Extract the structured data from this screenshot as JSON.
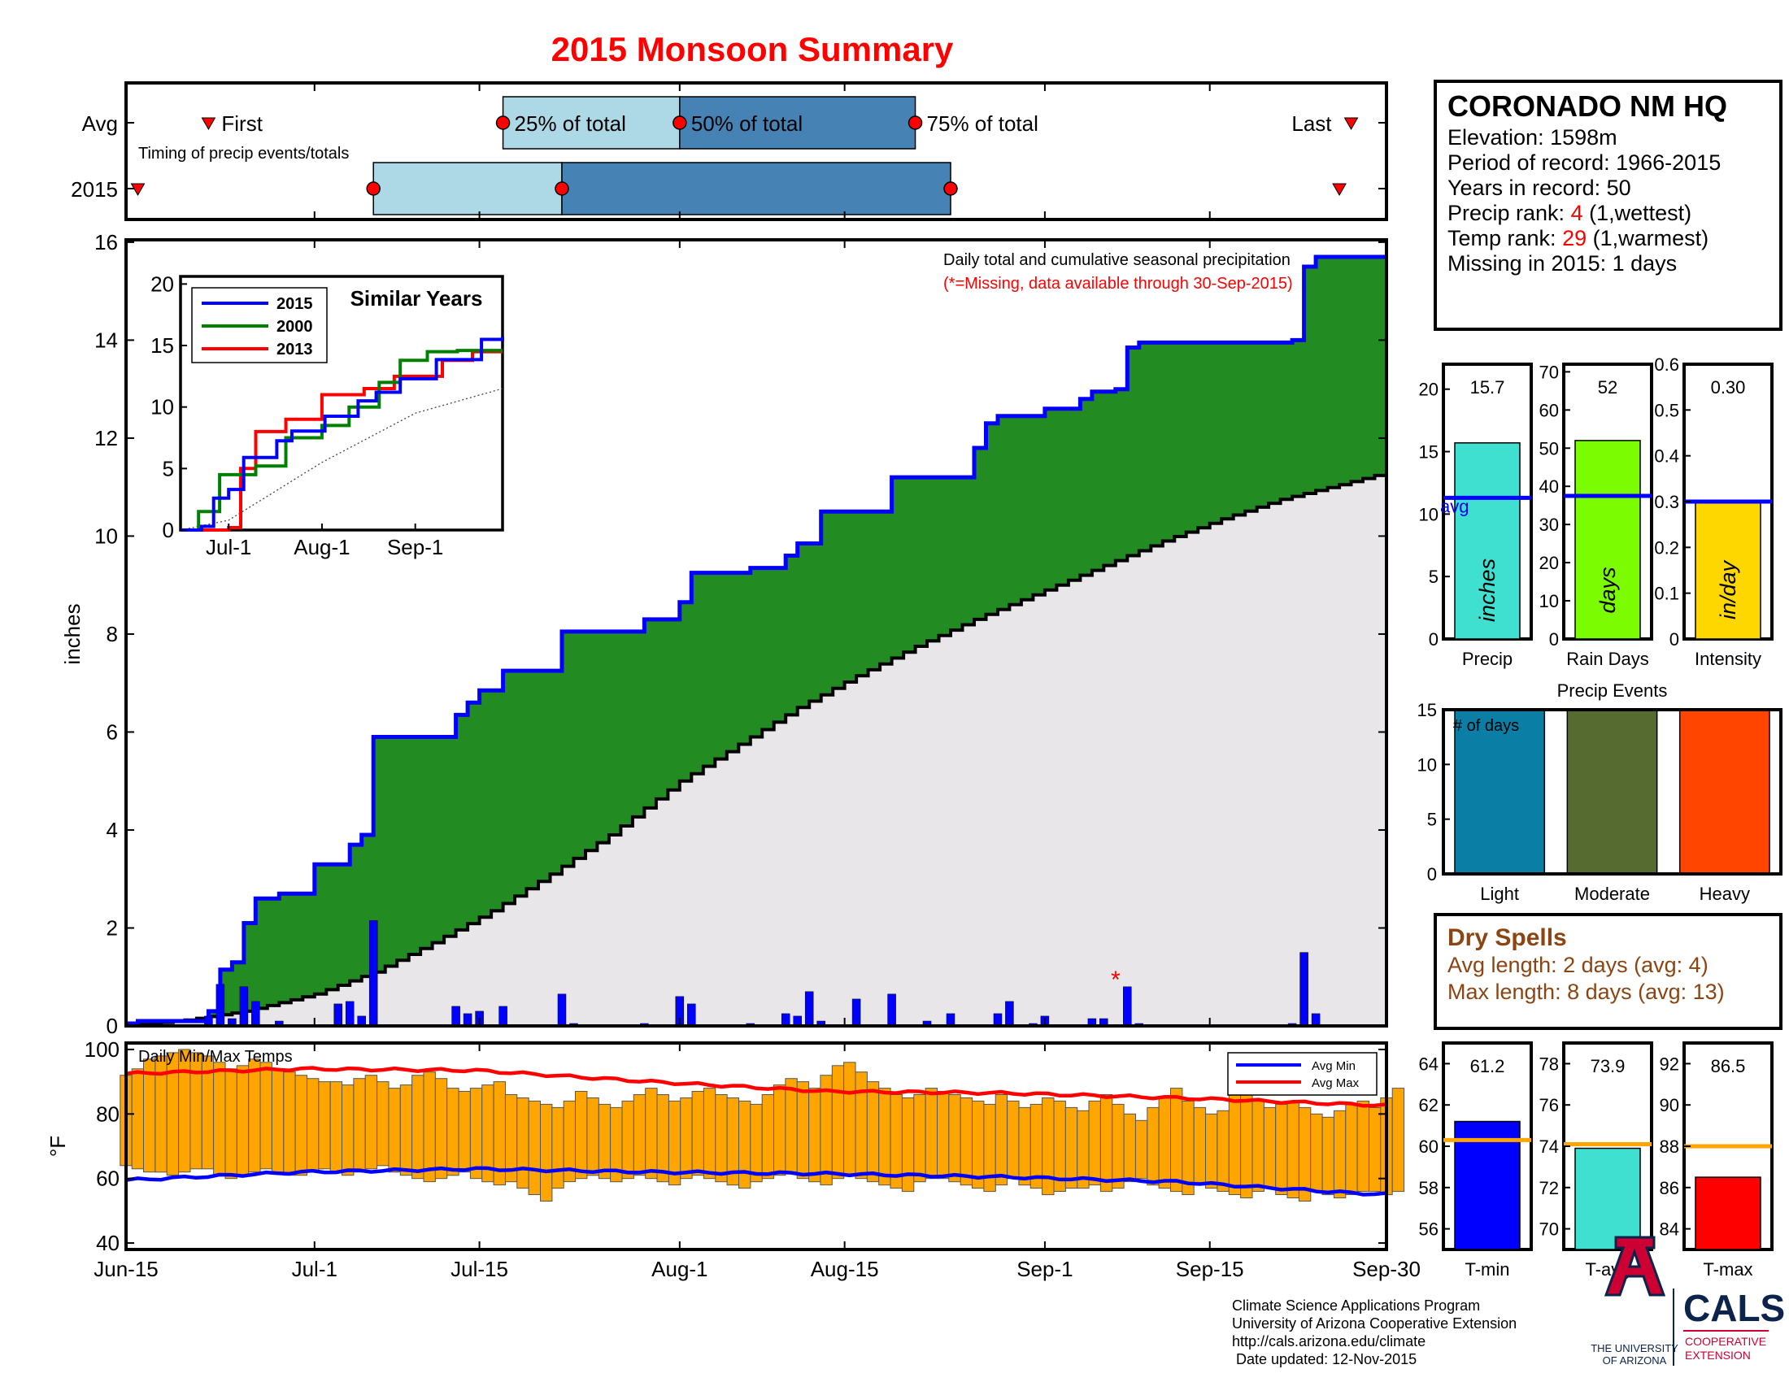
{
  "title": "2015 Monsoon Summary",
  "timing": {
    "row_labels": [
      "Avg",
      "2015"
    ],
    "subtitle": "Timing of precip events/totals",
    "first_label": "First",
    "last_label": "Last",
    "pct25_label": "25% of total",
    "pct50_label": "50% of total",
    "pct75_label": "75% of total",
    "avg": {
      "first": "Jun-22",
      "p25": "Jul-17",
      "p50": "Aug-1",
      "p75": "Aug-21",
      "last": "Sep-27"
    },
    "y2015": {
      "first": "Jun-16",
      "p25": "Jul-6",
      "p50": "Jul-22",
      "p75": "Aug-24",
      "last": "Sep-26"
    }
  },
  "station": {
    "name": "CORONADO NM HQ",
    "elevation_label": "Elevation: 1598m",
    "period_label": "Period of record: 1966-2015",
    "years_label": "Years in record: 50",
    "precip_rank_prefix": "Precip rank: ",
    "precip_rank": "4",
    "precip_rank_suffix": " (1,wettest)",
    "temp_rank_prefix": "Temp rank: ",
    "temp_rank": "29",
    "temp_rank_suffix": " (1,warmest)",
    "missing_label": "Missing in 2015: 1 days"
  },
  "chart_data": [
    {
      "type": "area",
      "name": "main_precip",
      "annotation": "Daily total and cumulative seasonal precipitation",
      "annotation_missing": "(*=Missing, data available through 30-Sep-2015)",
      "ylabel": "inches",
      "ylim": [
        0,
        16
      ],
      "yticks": [
        0,
        2,
        4,
        6,
        8,
        10,
        12,
        14,
        16
      ],
      "xlim": [
        "Jun-15",
        "Sep-30"
      ],
      "xtick_labels": [
        "Jun-15",
        "Jul-1",
        "Jul-15",
        "Aug-1",
        "Aug-15",
        "Sep-1",
        "Sep-15",
        "Sep-30"
      ],
      "cumulative_2015": [
        [
          "Jun-15",
          0.05
        ],
        [
          "Jun-16",
          0.1
        ],
        [
          "Jun-22",
          0.3
        ],
        [
          "Jun-23",
          1.15
        ],
        [
          "Jun-24",
          1.3
        ],
        [
          "Jun-25",
          2.1
        ],
        [
          "Jun-26",
          2.6
        ],
        [
          "Jun-28",
          2.7
        ],
        [
          "Jul-1",
          3.3
        ],
        [
          "Jul-4",
          3.7
        ],
        [
          "Jul-5",
          3.9
        ],
        [
          "Jul-6",
          5.9
        ],
        [
          "Jul-13",
          6.35
        ],
        [
          "Jul-14",
          6.6
        ],
        [
          "Jul-15",
          6.85
        ],
        [
          "Jul-17",
          7.25
        ],
        [
          "Jul-22",
          8.05
        ],
        [
          "Jul-29",
          8.3
        ],
        [
          "Aug-1",
          8.65
        ],
        [
          "Aug-2",
          9.25
        ],
        [
          "Aug-7",
          9.35
        ],
        [
          "Aug-10",
          9.6
        ],
        [
          "Aug-11",
          9.85
        ],
        [
          "Aug-13",
          10.5
        ],
        [
          "Aug-19",
          11.2
        ],
        [
          "Aug-26",
          11.8
        ],
        [
          "Aug-27",
          12.3
        ],
        [
          "Aug-28",
          12.45
        ],
        [
          "Sep-1",
          12.6
        ],
        [
          "Sep-4",
          12.8
        ],
        [
          "Sep-5",
          12.95
        ],
        [
          "Sep-7",
          13.0
        ],
        [
          "Sep-8",
          13.85
        ],
        [
          "Sep-9",
          13.95
        ],
        [
          "Sep-22",
          14.0
        ],
        [
          "Sep-23",
          15.5
        ],
        [
          "Sep-24",
          15.7
        ],
        [
          "Sep-30",
          15.7
        ]
      ],
      "average_cumulative": [
        [
          "Jun-15",
          0.0
        ],
        [
          "Jun-20",
          0.12
        ],
        [
          "Jun-25",
          0.3
        ],
        [
          "Jul-1",
          0.65
        ],
        [
          "Jul-6",
          1.1
        ],
        [
          "Jul-11",
          1.7
        ],
        [
          "Jul-16",
          2.35
        ],
        [
          "Jul-21",
          3.1
        ],
        [
          "Jul-26",
          3.9
        ],
        [
          "Aug-1",
          5.0
        ],
        [
          "Aug-6",
          5.75
        ],
        [
          "Aug-11",
          6.5
        ],
        [
          "Aug-16",
          7.15
        ],
        [
          "Aug-21",
          7.75
        ],
        [
          "Aug-26",
          8.3
        ],
        [
          "Sep-1",
          8.9
        ],
        [
          "Sep-6",
          9.4
        ],
        [
          "Sep-11",
          9.9
        ],
        [
          "Sep-16",
          10.35
        ],
        [
          "Sep-21",
          10.75
        ],
        [
          "Sep-26",
          11.05
        ],
        [
          "Sep-30",
          11.3
        ]
      ],
      "daily_2015": [
        [
          "Jun-22",
          0.2
        ],
        [
          "Jun-23",
          0.85
        ],
        [
          "Jun-24",
          0.15
        ],
        [
          "Jun-25",
          0.8
        ],
        [
          "Jun-26",
          0.5
        ],
        [
          "Jun-28",
          0.1
        ],
        [
          "Jul-3",
          0.45
        ],
        [
          "Jul-4",
          0.5
        ],
        [
          "Jul-5",
          0.2
        ],
        [
          "Jul-6",
          2.15
        ],
        [
          "Jul-13",
          0.4
        ],
        [
          "Jul-14",
          0.25
        ],
        [
          "Jul-15",
          0.3
        ],
        [
          "Jul-17",
          0.4
        ],
        [
          "Jul-22",
          0.65
        ],
        [
          "Jul-23",
          0.05
        ],
        [
          "Jul-29",
          0.05
        ],
        [
          "Aug-1",
          0.6
        ],
        [
          "Aug-2",
          0.45
        ],
        [
          "Aug-7",
          0.05
        ],
        [
          "Aug-10",
          0.25
        ],
        [
          "Aug-11",
          0.2
        ],
        [
          "Aug-12",
          0.7
        ],
        [
          "Aug-13",
          0.1
        ],
        [
          "Aug-16",
          0.55
        ],
        [
          "Aug-19",
          0.65
        ],
        [
          "Aug-22",
          0.1
        ],
        [
          "Aug-24",
          0.25
        ],
        [
          "Aug-28",
          0.25
        ],
        [
          "Aug-29",
          0.5
        ],
        [
          "Aug-31",
          0.05
        ],
        [
          "Sep-1",
          0.2
        ],
        [
          "Sep-5",
          0.15
        ],
        [
          "Sep-6",
          0.15
        ],
        [
          "Sep-8",
          0.8
        ],
        [
          "Sep-9",
          0.05
        ],
        [
          "Sep-22",
          0.05
        ],
        [
          "Sep-23",
          1.5
        ],
        [
          "Sep-24",
          0.25
        ]
      ],
      "missing_marker": {
        "date": "Sep-7",
        "value": 0.95,
        "symbol": "*"
      }
    },
    {
      "type": "line",
      "name": "similar_years",
      "title": "Similar Years",
      "ylim": [
        0,
        20
      ],
      "yticks": [
        0,
        5,
        10,
        15,
        20
      ],
      "xtick_labels": [
        "Jul-1",
        "Aug-1",
        "Sep-1"
      ],
      "series": [
        {
          "name": "2015",
          "color": "#0000ff",
          "points": [
            [
              "Jun-15",
              0
            ],
            [
              "Jun-22",
              0.3
            ],
            [
              "Jun-26",
              2.6
            ],
            [
              "Jul-1",
              3.3
            ],
            [
              "Jul-6",
              5.9
            ],
            [
              "Jul-17",
              7.25
            ],
            [
              "Jul-22",
              8.05
            ],
            [
              "Aug-2",
              9.25
            ],
            [
              "Aug-13",
              10.5
            ],
            [
              "Aug-19",
              11.2
            ],
            [
              "Aug-27",
              12.3
            ],
            [
              "Sep-8",
              13.85
            ],
            [
              "Sep-23",
              15.5
            ],
            [
              "Sep-30",
              15.7
            ]
          ]
        },
        {
          "name": "2000",
          "color": "#008000",
          "points": [
            [
              "Jun-15",
              0
            ],
            [
              "Jun-21",
              1.5
            ],
            [
              "Jun-28",
              4.5
            ],
            [
              "Jul-10",
              5.2
            ],
            [
              "Jul-20",
              7.5
            ],
            [
              "Aug-1",
              8.5
            ],
            [
              "Aug-10",
              10.0
            ],
            [
              "Aug-20",
              12.0
            ],
            [
              "Aug-27",
              13.8
            ],
            [
              "Sep-5",
              14.5
            ],
            [
              "Sep-15",
              14.6
            ],
            [
              "Sep-30",
              14.6
            ]
          ]
        },
        {
          "name": "2013",
          "color": "#ff0000",
          "points": [
            [
              "Jun-15",
              0
            ],
            [
              "Jul-1",
              0.2
            ],
            [
              "Jul-5",
              5.0
            ],
            [
              "Jul-10",
              8.0
            ],
            [
              "Jul-20",
              9.0
            ],
            [
              "Aug-1",
              11.0
            ],
            [
              "Aug-15",
              11.5
            ],
            [
              "Aug-25",
              12.5
            ],
            [
              "Sep-10",
              13.8
            ],
            [
              "Sep-20",
              14.5
            ],
            [
              "Sep-30",
              14.5
            ]
          ]
        }
      ],
      "average_line": [
        [
          "Jun-15",
          0
        ],
        [
          "Jul-1",
          0.8
        ],
        [
          "Aug-1",
          5.5
        ],
        [
          "Sep-1",
          9.5
        ],
        [
          "Sep-30",
          11.5
        ]
      ]
    },
    {
      "type": "bar",
      "name": "totals",
      "panels": [
        {
          "label": "Precip",
          "unit": "inches",
          "value": 15.7,
          "value_label": "15.7",
          "avg": 11.3,
          "avg_label": "avg",
          "ylim": [
            0,
            22
          ],
          "yticks": [
            0,
            5,
            10,
            15,
            20
          ],
          "color": "#40e0d0"
        },
        {
          "label": "Rain Days",
          "unit": "days",
          "value": 52,
          "value_label": "52",
          "avg": 37.5,
          "ylim": [
            0,
            72
          ],
          "yticks": [
            0,
            10,
            20,
            30,
            40,
            50,
            60,
            70
          ],
          "color": "#7cfc00"
        },
        {
          "label": "Intensity",
          "unit": "in/day",
          "value": 0.3,
          "value_label": "0.30",
          "avg": 0.3,
          "ylim": [
            0,
            0.6
          ],
          "yticks": [
            0,
            0.1,
            0.2,
            0.3,
            0.4,
            0.5,
            0.6
          ],
          "ytick_labels": [
            "0",
            "0.1",
            "0.2",
            "0.3",
            "0.4",
            "0.5",
            "0.6"
          ],
          "color": "#ffd700"
        }
      ]
    },
    {
      "type": "bar",
      "name": "precip_events",
      "title": "Precip Events",
      "ylabel_inside": "# of days",
      "categories": [
        "Light",
        "Moderate",
        "Heavy"
      ],
      "values": [
        15,
        15,
        15
      ],
      "colors": [
        "#0a7ea4",
        "#556b2f",
        "#ff4500"
      ],
      "ylim": [
        0,
        15
      ],
      "yticks": [
        0,
        5,
        10,
        15
      ]
    },
    {
      "type": "bar",
      "name": "daily_temps",
      "title": "Daily Min/Max Temps",
      "ylabel": "°F",
      "ylim": [
        38,
        102
      ],
      "yticks": [
        40,
        60,
        80,
        100
      ],
      "legend": [
        "Avg Min",
        "Avg Max"
      ],
      "legend_position": "top-right",
      "max_temps": [
        92,
        94,
        97,
        98,
        99,
        100,
        99,
        98,
        96,
        94,
        95,
        97,
        96,
        94,
        93,
        92,
        91,
        90,
        90,
        89,
        91,
        92,
        90,
        88,
        89,
        92,
        93,
        91,
        88,
        87,
        88,
        89,
        90,
        86,
        85,
        84,
        83,
        82,
        84,
        87,
        85,
        83,
        82,
        84,
        86,
        88,
        86,
        84,
        85,
        87,
        88,
        86,
        85,
        84,
        83,
        86,
        89,
        91,
        90,
        88,
        92,
        95,
        96,
        93,
        90,
        88,
        86,
        85,
        86,
        88,
        87,
        86,
        85,
        84,
        83,
        86,
        84,
        82,
        83,
        85,
        84,
        82,
        81,
        84,
        86,
        83,
        80,
        78,
        82,
        85,
        88,
        84,
        82,
        80,
        81,
        86,
        86,
        84,
        82,
        83,
        84,
        82,
        80,
        79,
        81,
        83,
        84,
        82,
        85,
        88
      ],
      "min_temps": [
        64,
        63,
        62,
        62,
        61,
        62,
        63,
        63,
        61,
        60,
        61,
        62,
        63,
        62,
        61,
        61,
        62,
        63,
        62,
        61,
        62,
        63,
        64,
        62,
        61,
        60,
        59,
        60,
        61,
        62,
        60,
        59,
        58,
        59,
        57,
        55,
        53,
        57,
        59,
        60,
        61,
        60,
        59,
        60,
        61,
        60,
        59,
        58,
        60,
        61,
        60,
        59,
        58,
        57,
        59,
        60,
        61,
        62,
        60,
        59,
        58,
        60,
        61,
        60,
        59,
        58,
        57,
        56,
        59,
        60,
        60,
        59,
        58,
        57,
        56,
        58,
        60,
        58,
        57,
        55,
        56,
        57,
        57,
        58,
        56,
        57,
        59,
        60,
        58,
        57,
        56,
        55,
        58,
        57,
        56,
        55,
        54,
        56,
        57,
        55,
        54,
        53,
        56,
        55,
        54,
        55,
        56,
        56,
        55,
        56
      ],
      "avg_max": [
        [
          0,
          92.5
        ],
        [
          15,
          94
        ],
        [
          30,
          93.5
        ],
        [
          45,
          90
        ],
        [
          60,
          87
        ],
        [
          75,
          86.5
        ],
        [
          90,
          85
        ],
        [
          105,
          83
        ],
        [
          109,
          82.5
        ]
      ],
      "avg_min": [
        [
          0,
          59.5
        ],
        [
          15,
          62
        ],
        [
          30,
          63
        ],
        [
          45,
          62
        ],
        [
          60,
          61.5
        ],
        [
          75,
          60.5
        ],
        [
          90,
          59
        ],
        [
          105,
          55.5
        ],
        [
          109,
          55
        ]
      ]
    },
    {
      "type": "bar",
      "name": "temp_summary",
      "panels": [
        {
          "label": "T-min",
          "value": 61.2,
          "value_label": "61.2",
          "avg": 60.3,
          "ylim": [
            55,
            65
          ],
          "yticks": [
            56,
            58,
            60,
            62,
            64
          ],
          "color": "#0000ff"
        },
        {
          "label": "T-avg",
          "value": 73.9,
          "value_label": "73.9",
          "avg": 74.1,
          "ylim": [
            69,
            79
          ],
          "yticks": [
            70,
            72,
            74,
            76,
            78
          ],
          "color": "#40e0d0"
        },
        {
          "label": "T-max",
          "value": 86.5,
          "value_label": "86.5",
          "avg": 88.0,
          "ylim": [
            83,
            93
          ],
          "yticks": [
            84,
            86,
            88,
            90,
            92
          ],
          "color": "#ff0000"
        }
      ]
    }
  ],
  "dry_spells": {
    "title": "Dry Spells",
    "avg_length": "Avg length: 2 days (avg: 4)",
    "max_length": "Max length: 8 days (avg: 13)"
  },
  "footer": {
    "line1": "Climate Science Applications Program",
    "line2": "University of Arizona Cooperative Extension",
    "line3": "http://cals.arizona.edu/climate",
    "line4": " Date updated: 12-Nov-2015"
  },
  "logos": {
    "ua_line1": "THE UNIVERSITY",
    "ua_line2": "OF ARIZONA",
    "cals": "CALS",
    "cals_line1": "COOPERATIVE",
    "cals_line2": "EXTENSION"
  },
  "colors": {
    "title": "#ff0000",
    "precip_2015_line": "#0000ff",
    "surplus_fill": "#228b22",
    "average_fill": "#e8e6e8",
    "daily_bar": "#0000ff",
    "temp_bar": "#ffa500",
    "dry_spell_text": "#8b4513",
    "timing_light": "#add8e6",
    "timing_dark": "#4682b4"
  }
}
